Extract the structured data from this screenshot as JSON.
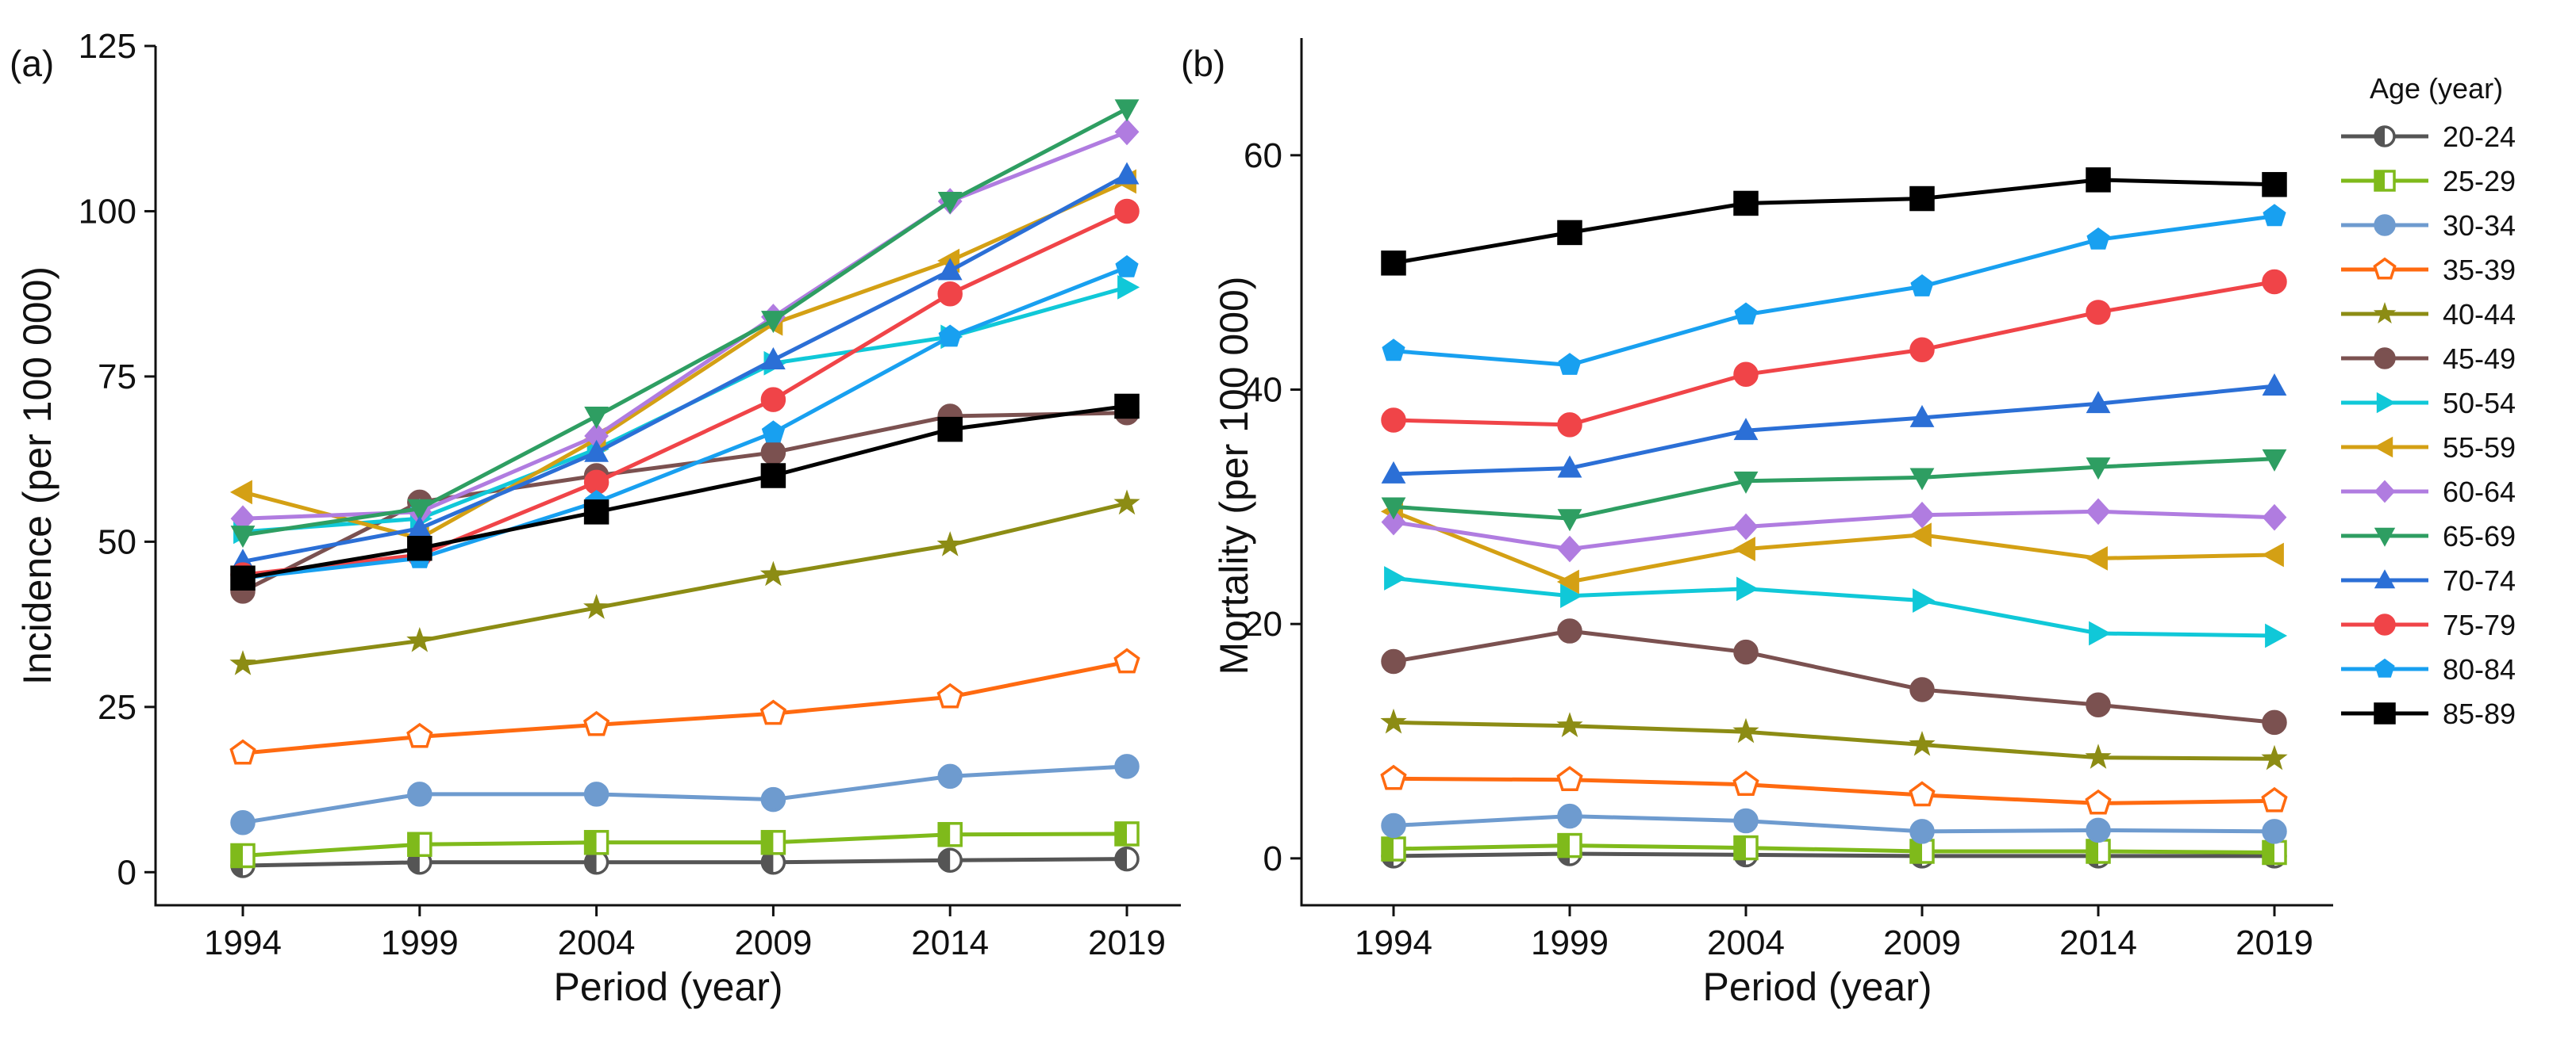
{
  "legend": {
    "title": "Age (year)"
  },
  "colors": {
    "20-24": "#555555",
    "25-29": "#7FBA1B",
    "30-34": "#6E9BCF",
    "35-39": "#FF6A10",
    "40-44": "#8C8C14",
    "45-49": "#7B5150",
    "50-54": "#10C8D8",
    "55-59": "#D4A014",
    "60-64": "#B07CE0",
    "65-69": "#2E9E62",
    "70-74": "#2B6FD6",
    "75-79": "#F04448",
    "80-84": "#18A0F0",
    "85-89": "#000000"
  },
  "markers": {
    "20-24": "half-circle",
    "25-29": "half-square",
    "30-34": "circle",
    "35-39": "pentagon-open",
    "40-44": "star",
    "45-49": "circle",
    "50-54": "triangle-right",
    "55-59": "triangle-left",
    "60-64": "diamond",
    "65-69": "triangle-down",
    "70-74": "triangle-up",
    "75-79": "circle",
    "80-84": "pentagon",
    "85-89": "square"
  },
  "chart_data": [
    {
      "type": "line",
      "panel_label": "(a)",
      "xlabel": "Period (year)",
      "ylabel": "Incidence (per 100 000)",
      "categories": [
        "1994",
        "1999",
        "2004",
        "2009",
        "2014",
        "2019"
      ],
      "yticks": [
        0,
        25,
        50,
        75,
        100,
        125
      ],
      "ylim": [
        -5,
        125
      ],
      "series": [
        {
          "name": "20-24",
          "values": [
            1,
            1.5,
            1.5,
            1.5,
            1.8,
            2
          ]
        },
        {
          "name": "25-29",
          "values": [
            2.5,
            4.2,
            4.5,
            4.5,
            5.7,
            5.8
          ]
        },
        {
          "name": "30-34",
          "values": [
            7.5,
            11.8,
            11.8,
            11,
            14.5,
            16
          ]
        },
        {
          "name": "35-39",
          "values": [
            18,
            20.5,
            22.3,
            24,
            26.5,
            31.8
          ]
        },
        {
          "name": "40-44",
          "values": [
            31.5,
            35,
            40,
            45,
            49.5,
            55.8
          ]
        },
        {
          "name": "45-49",
          "values": [
            42.5,
            56,
            60,
            63.5,
            69,
            69.5
          ]
        },
        {
          "name": "50-54",
          "values": [
            51.5,
            53.5,
            64,
            77,
            81,
            88.5
          ]
        },
        {
          "name": "55-59",
          "values": [
            57.5,
            50.5,
            65.5,
            83,
            92.5,
            104.5
          ]
        },
        {
          "name": "60-64",
          "values": [
            53.5,
            54.5,
            66,
            84,
            101.5,
            112
          ]
        },
        {
          "name": "65-69",
          "values": [
            51,
            55,
            69,
            83.5,
            101.5,
            115.5
          ]
        },
        {
          "name": "70-74",
          "values": [
            47,
            52,
            63.5,
            77.5,
            91,
            105.5
          ]
        },
        {
          "name": "75-79",
          "values": [
            45,
            48,
            59,
            71.5,
            87.5,
            100
          ]
        },
        {
          "name": "80-84",
          "values": [
            44.5,
            47.5,
            56,
            66.5,
            81,
            91.5
          ]
        },
        {
          "name": "85-89",
          "values": [
            44.5,
            49,
            54.5,
            60,
            67,
            70.5
          ]
        }
      ]
    },
    {
      "type": "line",
      "panel_label": "(b)",
      "xlabel": "Period (year)",
      "ylabel": "Mortality (per 100 000)",
      "categories": [
        "1994",
        "1999",
        "2004",
        "2009",
        "2014",
        "2019"
      ],
      "yticks": [
        0,
        20,
        40,
        60
      ],
      "ylim": [
        -4,
        70
      ],
      "series": [
        {
          "name": "20-24",
          "values": [
            0.2,
            0.4,
            0.3,
            0.2,
            0.2,
            0.2
          ]
        },
        {
          "name": "25-29",
          "values": [
            0.8,
            1.1,
            0.9,
            0.6,
            0.6,
            0.5
          ]
        },
        {
          "name": "30-34",
          "values": [
            2.8,
            3.6,
            3.2,
            2.3,
            2.4,
            2.3
          ]
        },
        {
          "name": "35-39",
          "values": [
            6.8,
            6.7,
            6.3,
            5.4,
            4.7,
            4.9
          ]
        },
        {
          "name": "40-44",
          "values": [
            11.6,
            11.3,
            10.8,
            9.7,
            8.6,
            8.5
          ]
        },
        {
          "name": "45-49",
          "values": [
            16.8,
            19.4,
            17.6,
            14.4,
            13.1,
            11.6
          ]
        },
        {
          "name": "50-54",
          "values": [
            23.9,
            22.4,
            23,
            22,
            19.2,
            19
          ]
        },
        {
          "name": "55-59",
          "values": [
            29.6,
            23.6,
            26.4,
            27.6,
            25.6,
            25.9
          ]
        },
        {
          "name": "60-64",
          "values": [
            28.7,
            26.4,
            28.3,
            29.3,
            29.6,
            29.1
          ]
        },
        {
          "name": "65-69",
          "values": [
            30,
            29,
            32.2,
            32.5,
            33.4,
            34.1
          ]
        },
        {
          "name": "70-74",
          "values": [
            32.8,
            33.3,
            36.5,
            37.6,
            38.8,
            40.3
          ]
        },
        {
          "name": "75-79",
          "values": [
            37.4,
            37,
            41.3,
            43.4,
            46.6,
            49.2
          ]
        },
        {
          "name": "80-84",
          "values": [
            43.3,
            42.1,
            46.4,
            48.8,
            52.8,
            54.8
          ]
        },
        {
          "name": "85-89",
          "values": [
            50.8,
            53.4,
            55.9,
            56.3,
            57.9,
            57.5
          ]
        }
      ]
    }
  ]
}
